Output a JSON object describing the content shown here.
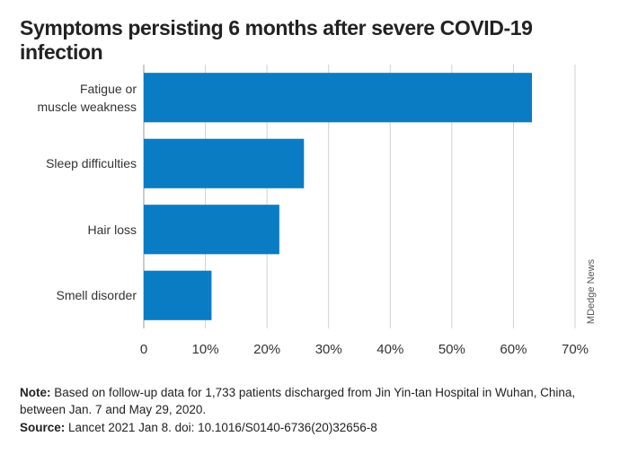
{
  "chart_data": {
    "type": "barh",
    "title": "Symptoms persisting 6 months after severe COVID-19 infection",
    "categories": [
      "Fatigue or\nmuscle weakness",
      "Sleep difficulties",
      "Hair loss",
      "Smell disorder"
    ],
    "values": [
      63,
      26,
      22,
      11
    ],
    "color": "#0a7cc4",
    "xlim": [
      0,
      70
    ],
    "xticks": [
      0,
      {
        "value": 10,
        "label": "10%"
      },
      {
        "value": 20,
        "label": "20%"
      },
      {
        "value": 30,
        "label": "30%"
      },
      {
        "value": 40,
        "label": "40%"
      },
      {
        "value": 50,
        "label": "50%"
      },
      {
        "value": 60,
        "label": "60%"
      },
      {
        "value": 70,
        "label": "70%"
      }
    ],
    "grid": true,
    "credit": "MDedge News",
    "note_label": "Note:",
    "note": "Based on follow-up data for 1,733 patients discharged from Jin Yin-tan Hospital in Wuhan, China, between Jan. 7 and May 29, 2020.",
    "source_label": "Source:",
    "source": "Lancet 2021 Jan 8. doi: 10.1016/S0140-6736(20)32656-8"
  }
}
